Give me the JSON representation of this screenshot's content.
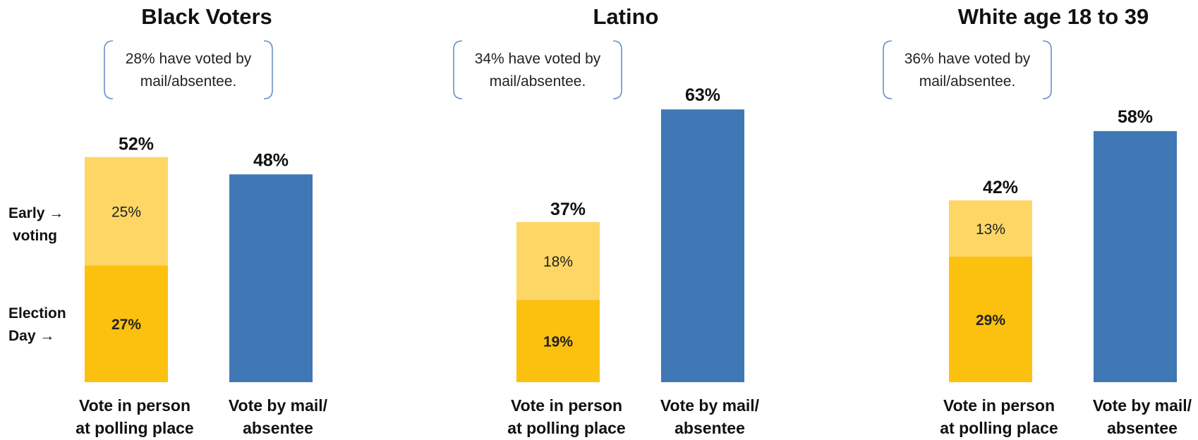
{
  "side_labels": {
    "early": [
      "Early →",
      "voting"
    ],
    "election_day": [
      "Election",
      "Day →"
    ]
  },
  "colors": {
    "early_voting": "#FDD666",
    "election_day": "#FBC10E",
    "mail": "#3F78B5",
    "brace": "#6A8FC8"
  },
  "chart_data": [
    {
      "type": "bar",
      "title": "Black Voters",
      "note": [
        "28% have voted by",
        "mail/absentee."
      ],
      "categories": [
        [
          "Vote in person",
          "at polling place"
        ],
        [
          "Vote by mail/",
          "absentee"
        ]
      ],
      "in_person": {
        "total": 52,
        "total_label": "52%",
        "early_voting": 25,
        "early_label": "25%",
        "election_day": 27,
        "election_day_label": "27%"
      },
      "mail": {
        "total": 48,
        "total_label": "48%"
      }
    },
    {
      "type": "bar",
      "title": "Latino",
      "note": [
        "34% have voted by",
        "mail/absentee."
      ],
      "categories": [
        [
          "Vote in person",
          "at polling place"
        ],
        [
          "Vote by mail/",
          "absentee"
        ]
      ],
      "in_person": {
        "total": 37,
        "total_label": "37%",
        "early_voting": 18,
        "early_label": "18%",
        "election_day": 19,
        "election_day_label": "19%"
      },
      "mail": {
        "total": 63,
        "total_label": "63%"
      }
    },
    {
      "type": "bar",
      "title": "White age 18 to 39",
      "note": [
        "36% have voted by",
        "mail/absentee."
      ],
      "categories": [
        [
          "Vote in person",
          "at polling place"
        ],
        [
          "Vote by mail/",
          "absentee"
        ]
      ],
      "in_person": {
        "total": 42,
        "total_label": "42%",
        "early_voting": 13,
        "early_label": "13%",
        "election_day": 29,
        "election_day_label": "29%"
      },
      "mail": {
        "total": 58,
        "total_label": "58%"
      }
    }
  ]
}
